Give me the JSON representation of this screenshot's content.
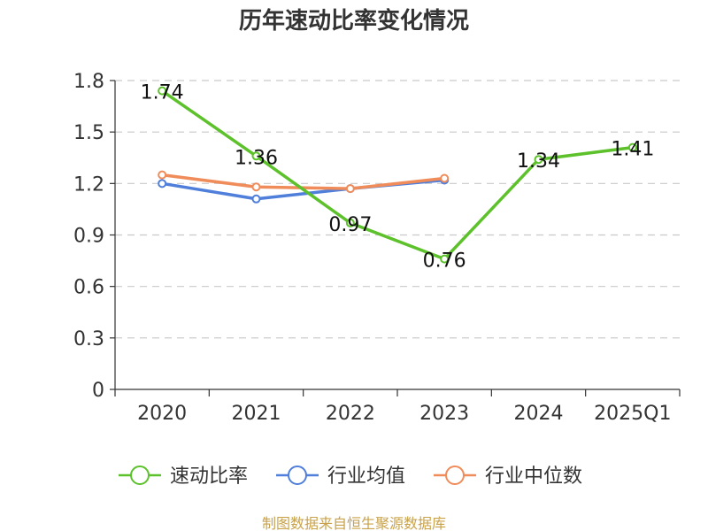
{
  "chart_data": {
    "type": "line",
    "title": "历年速动比率变化情况",
    "categories": [
      "2020",
      "2021",
      "2022",
      "2023",
      "2024",
      "2025Q1"
    ],
    "ylim": [
      0,
      1.8
    ],
    "yticks": [
      "0",
      "0.3",
      "0.6",
      "0.9",
      "1.2",
      "1.5",
      "1.8"
    ],
    "grid": true,
    "legend_position": "bottom",
    "series": [
      {
        "name": "速动比率",
        "color": "#5cc12a",
        "values": [
          1.74,
          1.36,
          0.97,
          0.76,
          1.34,
          1.41
        ],
        "labels": [
          "1.74",
          "1.36",
          "0.97",
          "0.76",
          "1.34",
          "1.41"
        ]
      },
      {
        "name": "行业均值",
        "color": "#4f7fdb",
        "values": [
          1.2,
          1.11,
          1.17,
          1.22,
          null,
          null
        ]
      },
      {
        "name": "行业中位数",
        "color": "#f08c5a",
        "values": [
          1.25,
          1.18,
          1.17,
          1.23,
          null,
          null
        ]
      }
    ],
    "source": "制图数据来自恒生聚源数据库"
  }
}
